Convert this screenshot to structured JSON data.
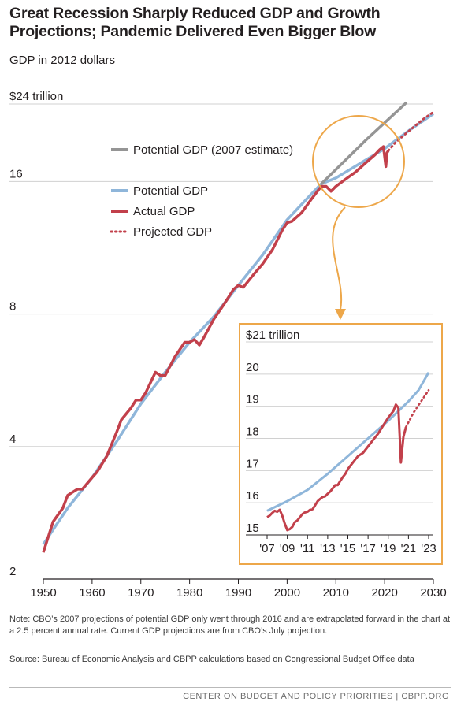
{
  "title": "Great Recession Sharply Reduced GDP and Growth Projections; Pandemic Delivered Even Bigger Blow",
  "subtitle": "GDP in 2012 dollars",
  "note": "Note: CBO’s 2007 projections of potential GDP only went through 2016 and are extrapolated forward in the chart at a 2.5 percent annual rate.  Current GDP projections are from CBO’s July projection.",
  "source": "Source: Bureau of Economic Analysis and CBPP calculations based on Congressional Budget Office data",
  "footer": "CENTER ON BUDGET AND POLICY PRIORITIES | CBPP.ORG",
  "colors": {
    "potential_2007": "#959595",
    "potential": "#8fb6da",
    "actual": "#c2404b",
    "projected": "#c2404b",
    "highlight": "#eda74a"
  },
  "chart_data": [
    {
      "type": "line",
      "title": "",
      "xlabel": "",
      "ylabel": "",
      "yscale": "log",
      "xlim": [
        1950,
        2030
      ],
      "ylim": [
        2,
        24
      ],
      "x_ticks": [
        "1950",
        "1960",
        "1970",
        "1980",
        "1990",
        "2000",
        "2010",
        "2020",
        "2030"
      ],
      "y_ticks": [
        {
          "value": 2,
          "label": "2"
        },
        {
          "value": 4,
          "label": "4"
        },
        {
          "value": 8,
          "label": "8"
        },
        {
          "value": 16,
          "label": "16"
        },
        {
          "value": 24,
          "label": "$24 trillion"
        }
      ],
      "legend": {
        "placement": "upper-left"
      },
      "series": [
        {
          "name": "Potential GDP (2007 estimate)",
          "color_key": "potential_2007",
          "style": "solid",
          "x": [
            2007,
            2016,
            2024.5
          ],
          "y": [
            15.8,
            19.8,
            24.2
          ]
        },
        {
          "name": "Potential GDP",
          "color_key": "potential",
          "style": "solid",
          "x": [
            1950,
            1955,
            1960,
            1965,
            1970,
            1975,
            1980,
            1985,
            1990,
            1995,
            2000,
            2005,
            2007,
            2010,
            2015,
            2020,
            2025,
            2030
          ],
          "y": [
            2.4,
            2.9,
            3.4,
            4.1,
            5.0,
            5.9,
            6.9,
            7.9,
            9.3,
            10.9,
            13.1,
            15.0,
            15.8,
            16.3,
            17.6,
            19.0,
            20.9,
            22.8
          ]
        },
        {
          "name": "Actual GDP",
          "color_key": "actual",
          "style": "solid",
          "x": [
            1950,
            1952,
            1954,
            1955,
            1957,
            1958,
            1960,
            1961,
            1963,
            1965,
            1966,
            1968,
            1969,
            1970,
            1971,
            1973,
            1974,
            1975,
            1977,
            1979,
            1980,
            1981,
            1982,
            1983,
            1985,
            1987,
            1989,
            1990,
            1991,
            1993,
            1995,
            1997,
            1999,
            2000,
            2001,
            2003,
            2005,
            2007,
            2008,
            2009,
            2010,
            2012,
            2014,
            2016,
            2018,
            2019,
            2019.75,
            2020.25,
            2020.5,
            2020.75
          ],
          "y": [
            2.3,
            2.7,
            2.9,
            3.1,
            3.2,
            3.2,
            3.4,
            3.5,
            3.8,
            4.3,
            4.6,
            4.9,
            5.1,
            5.1,
            5.3,
            5.9,
            5.8,
            5.8,
            6.4,
            6.9,
            6.9,
            7.0,
            6.8,
            7.1,
            7.8,
            8.4,
            9.1,
            9.3,
            9.2,
            9.8,
            10.4,
            11.2,
            12.4,
            12.9,
            13.0,
            13.6,
            14.6,
            15.6,
            15.6,
            15.2,
            15.6,
            16.2,
            16.8,
            17.6,
            18.4,
            18.9,
            19.2,
            17.3,
            18.6,
            18.8
          ]
        },
        {
          "name": "Projected GDP",
          "color_key": "projected",
          "style": "dotted",
          "x": [
            2020.75,
            2022,
            2024,
            2026,
            2028,
            2030
          ],
          "y": [
            18.8,
            19.5,
            20.4,
            21.3,
            22.2,
            23.0
          ]
        }
      ]
    },
    {
      "type": "line",
      "title": "",
      "xlabel": "",
      "ylabel": "",
      "xlim": [
        2007,
        2023
      ],
      "ylim": [
        15,
        21
      ],
      "x_ticks": [
        "'07",
        "'09",
        "'11",
        "'13",
        "'15",
        "'17",
        "'19",
        "'21",
        "'23"
      ],
      "y_ticks": [
        {
          "value": 15,
          "label": "15"
        },
        {
          "value": 16,
          "label": "16"
        },
        {
          "value": 17,
          "label": "17"
        },
        {
          "value": 18,
          "label": "18"
        },
        {
          "value": 19,
          "label": "19"
        },
        {
          "value": 20,
          "label": "20"
        },
        {
          "value": 21,
          "label": "$21 trillion"
        }
      ],
      "series": [
        {
          "name": "Potential GDP",
          "color_key": "potential",
          "style": "solid",
          "x": [
            2007,
            2009,
            2011,
            2013,
            2015,
            2017,
            2019,
            2021,
            2022,
            2023
          ],
          "y": [
            15.75,
            16.05,
            16.4,
            16.9,
            17.45,
            18.0,
            18.55,
            19.15,
            19.5,
            20.05
          ]
        },
        {
          "name": "Actual GDP",
          "color_key": "actual",
          "style": "solid",
          "x": [
            2007,
            2007.25,
            2007.5,
            2007.75,
            2008,
            2008.25,
            2008.5,
            2008.75,
            2009,
            2009.25,
            2009.5,
            2009.75,
            2010,
            2010.25,
            2010.5,
            2010.75,
            2011,
            2011.25,
            2011.5,
            2011.75,
            2012,
            2012.25,
            2012.5,
            2012.75,
            2013,
            2013.25,
            2013.5,
            2013.75,
            2014,
            2014.25,
            2014.5,
            2014.75,
            2015,
            2015.25,
            2015.5,
            2015.75,
            2016,
            2016.5,
            2017,
            2017.5,
            2018,
            2018.5,
            2019,
            2019.5,
            2019.75,
            2020,
            2020.25,
            2020.5,
            2020.75
          ],
          "y": [
            15.55,
            15.6,
            15.68,
            15.75,
            15.72,
            15.78,
            15.6,
            15.35,
            15.15,
            15.18,
            15.25,
            15.4,
            15.45,
            15.55,
            15.65,
            15.7,
            15.72,
            15.78,
            15.8,
            15.92,
            16.05,
            16.12,
            16.18,
            16.2,
            16.28,
            16.35,
            16.45,
            16.55,
            16.55,
            16.68,
            16.8,
            16.9,
            17.05,
            17.15,
            17.25,
            17.35,
            17.45,
            17.55,
            17.75,
            17.95,
            18.15,
            18.4,
            18.65,
            18.85,
            19.05,
            18.95,
            17.25,
            18.05,
            18.35
          ]
        },
        {
          "name": "Projected GDP",
          "color_key": "projected",
          "style": "dotted",
          "x": [
            2020.75,
            2021.5,
            2022.25,
            2023
          ],
          "y": [
            18.35,
            18.8,
            19.15,
            19.5
          ]
        }
      ]
    }
  ]
}
